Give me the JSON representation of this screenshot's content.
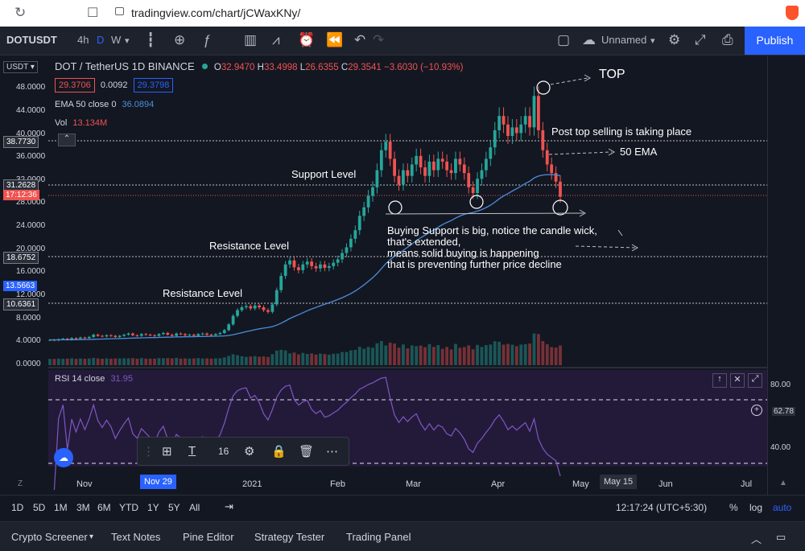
{
  "browser": {
    "url": "tradingview.com/chart/jCWaxKNy/"
  },
  "toolbar": {
    "symbol": "DOTUSDT",
    "intervals": [
      "4h",
      "D",
      "W"
    ],
    "layout_name": "Unnamed",
    "publish": "Publish"
  },
  "chart": {
    "legend_title": "DOT / TetherUS  1D  BINANCE",
    "ohlc": {
      "o_label": "O",
      "o": "32.9470",
      "h_label": "H",
      "h": "33.4998",
      "l_label": "L",
      "l": "26.6355",
      "c_label": "C",
      "c": "29.3541",
      "change": "−3.6030 (−10.93%)"
    },
    "bid": "29.3706",
    "spread": "0.0092",
    "ask": "29.3798",
    "ema_label": "EMA 50 close 0",
    "ema_value": "36.0894",
    "vol_label": "Vol",
    "vol_value": "13.134M",
    "currency": "USDT",
    "y_ticks": [
      "48.0000",
      "44.0000",
      "40.0000",
      "36.0000",
      "32.0000",
      "28.0000",
      "24.0000",
      "20.0000",
      "16.0000",
      "12.0000",
      "8.0000",
      "4.0000",
      "0.0000"
    ],
    "price_badges": {
      "b1": "38.7730",
      "b2": "31.2628",
      "b3": "17:12:36",
      "b4": "18.6752",
      "b5": "13.5663",
      "b6": "10.6361"
    },
    "rsi_label": "RSI 14 close",
    "rsi_value": "31.95",
    "rsi_ticks": [
      "80.00",
      "62.78",
      "40.00"
    ],
    "x_ticks": [
      "Nov",
      "Nov 29",
      "2021",
      "Feb",
      "Mar",
      "Apr",
      "May",
      "May 15",
      "Jun",
      "Jul"
    ],
    "annotations": {
      "top": "TOP",
      "post_top": "Post top selling is taking place",
      "ema": "50 EMA",
      "support": "Support Level",
      "resistance1": "Resistance Level",
      "resistance2": "Resistance Level",
      "buying1": "Buying Support is big, notice the candle wick,",
      "buying2": "that's extended,",
      "buying3": "means solid buying is happening",
      "buying4": "that is preventing further price decline"
    },
    "float_toolbar": {
      "font_size": "16"
    }
  },
  "bottom": {
    "ranges": [
      "1D",
      "5D",
      "1M",
      "3M",
      "6M",
      "YTD",
      "1Y",
      "5Y",
      "All"
    ],
    "time": "12:17:24 (UTC+5:30)",
    "pct": "%",
    "log": "log",
    "auto": "auto"
  },
  "panels": [
    "Crypto Screener",
    "Text Notes",
    "Pine Editor",
    "Strategy Tester",
    "Trading Panel"
  ],
  "chart_data": {
    "type": "candlestick",
    "title": "DOT / TetherUS  1D  BINANCE",
    "ylim": [
      0,
      50
    ],
    "close_prices": [
      4.3,
      4.2,
      4.4,
      4.5,
      4.3,
      4.6,
      4.5,
      4.7,
      4.6,
      4.8,
      5.2,
      5.0,
      4.9,
      5.1,
      5.0,
      4.8,
      5.0,
      5.2,
      5.4,
      5.1,
      5.0,
      5.3,
      5.2,
      5.1,
      5.0,
      5.3,
      5.5,
      5.2,
      5.0,
      5.4,
      5.3,
      5.1,
      5.2,
      5.0,
      5.3,
      5.4,
      5.2,
      5.1,
      5.3,
      5.5,
      6.0,
      7.0,
      8.5,
      9.5,
      10.0,
      10.2,
      9.8,
      10.3,
      10.0,
      9.5,
      9.2,
      10.5,
      13.0,
      15.5,
      17.5,
      18.2,
      17.0,
      16.5,
      17.5,
      18.0,
      17.2,
      16.8,
      17.5,
      16.9,
      17.2,
      17.8,
      18.4,
      19.5,
      20.5,
      22.0,
      23.5,
      26.0,
      27.5,
      29.5,
      31.0,
      34.0,
      37.5,
      39.0,
      36.0,
      33.0,
      31.5,
      34.0,
      33.0,
      35.0,
      36.5,
      34.5,
      33.0,
      35.5,
      34.0,
      36.0,
      35.5,
      34.0,
      33.5,
      36.0,
      35.0,
      33.5,
      31.0,
      30.0,
      32.5,
      34.0,
      36.0,
      38.0,
      41.0,
      43.5,
      42.0,
      40.0,
      41.5,
      40.5,
      42.0,
      43.5,
      41.5,
      47.0,
      41.0,
      37.5,
      35.0,
      33.5,
      32.0,
      29.35
    ],
    "ema50_end": 36.0894,
    "rsi_last": 31.95
  }
}
